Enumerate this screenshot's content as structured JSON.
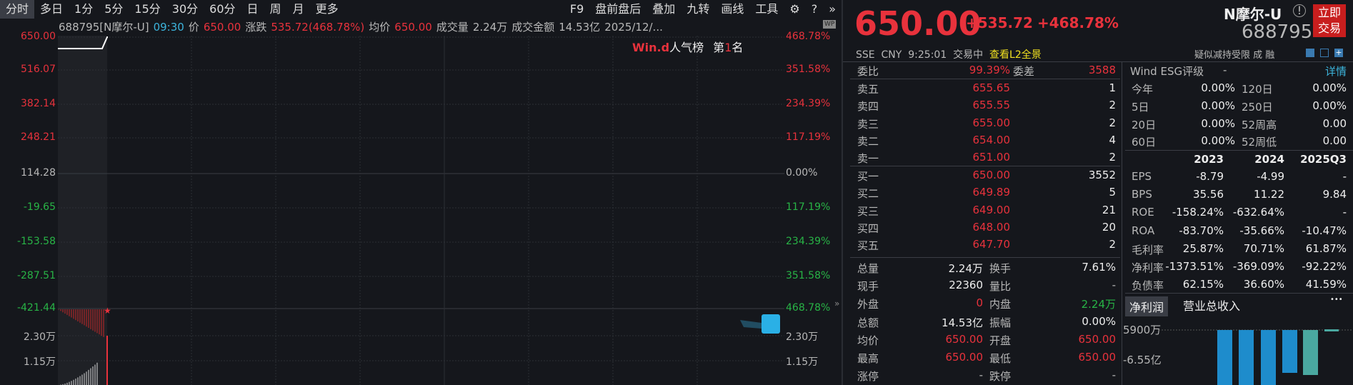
{
  "toolbar": {
    "tabs": [
      "分时",
      "多日",
      "1分",
      "5分",
      "15分",
      "30分",
      "60分",
      "日",
      "周",
      "月",
      "更多"
    ],
    "active": "分时",
    "right": [
      "F9",
      "盘前盘后",
      "叠加",
      "九转",
      "画线",
      "工具"
    ],
    "icons": [
      "gear-icon",
      "help-icon",
      "double-chevron-right-icon"
    ]
  },
  "info": {
    "code": "688795[N摩尔-U]",
    "time": "09:30",
    "price_label": "价",
    "price": "650.00",
    "change_label": "涨跌",
    "change": "535.72(468.78%)",
    "avg_label": "均价",
    "avg": "650.00",
    "vol_label": "成交量",
    "vol": "2.24万",
    "amt_label": "成交金额",
    "amt": "14.53亿",
    "date": "2025/12/...",
    "wp": "WP"
  },
  "rank": {
    "brand": "Win.d",
    "label": "人气榜",
    "prefix": "第",
    "num": "1",
    "suffix": "名"
  },
  "axis_left": [
    "650.00",
    "516.07",
    "382.14",
    "248.21",
    "114.28",
    "-19.65",
    "-153.58",
    "-287.51",
    "-421.44"
  ],
  "axis_right": [
    "468.78%",
    "351.58%",
    "234.39%",
    "117.19%",
    "0.00%",
    "117.19%",
    "234.39%",
    "351.58%",
    "468.78%"
  ],
  "vol_axis": [
    "2.30万",
    "1.15万"
  ],
  "quote": {
    "price": "650.00",
    "change": "+535.72",
    "pct": "+468.78%",
    "name": "N摩尔-U",
    "code": "688795",
    "trade_btn": "立即交易",
    "exchange": "SSE",
    "currency": "CNY",
    "time": "9:25:01",
    "status": "交易中",
    "l2": "查看L2全景",
    "tags": "疑似减持受限 成 融"
  },
  "book": {
    "wb_label": "委比",
    "wb": "99.39%",
    "wc_label": "委差",
    "wc": "3588",
    "asks": [
      [
        "卖五",
        "655.65",
        "1"
      ],
      [
        "卖四",
        "655.55",
        "2"
      ],
      [
        "卖三",
        "655.00",
        "2"
      ],
      [
        "卖二",
        "654.00",
        "4"
      ],
      [
        "卖一",
        "651.00",
        "2"
      ]
    ],
    "bids": [
      [
        "买一",
        "650.00",
        "3552"
      ],
      [
        "买二",
        "649.89",
        "5"
      ],
      [
        "买三",
        "649.00",
        "21"
      ],
      [
        "买四",
        "648.00",
        "20"
      ],
      [
        "买五",
        "647.70",
        "2"
      ]
    ]
  },
  "stats": [
    [
      "总量",
      "2.24万",
      "换手",
      "7.61%"
    ],
    [
      "现手",
      "22360",
      "量比",
      "-"
    ],
    [
      "外盘",
      "0",
      "内盘",
      "2.24万"
    ],
    [
      "总额",
      "14.53亿",
      "振幅",
      "0.00%"
    ],
    [
      "均价",
      "650.00",
      "开盘",
      "650.00"
    ],
    [
      "最高",
      "650.00",
      "最低",
      "650.00"
    ],
    [
      "涨停",
      "-",
      "跌停",
      "-"
    ]
  ],
  "esg": {
    "label": "Wind ESG评级",
    "value": "-",
    "detail": "详情"
  },
  "perf": [
    [
      "今年",
      "0.00%",
      "120日",
      "0.00%"
    ],
    [
      "5日",
      "0.00%",
      "250日",
      "0.00%"
    ],
    [
      "20日",
      "0.00%",
      "52周高",
      "0.00"
    ],
    [
      "60日",
      "0.00%",
      "52周低",
      "0.00"
    ]
  ],
  "fin": {
    "years": [
      "2023",
      "2024",
      "2025Q3"
    ],
    "rows": [
      [
        "EPS",
        "-8.79",
        "-4.99",
        "-"
      ],
      [
        "BPS",
        "35.56",
        "11.22",
        "9.84"
      ],
      [
        "ROE",
        "-158.24%",
        "-632.64%",
        "-"
      ],
      [
        "ROA",
        "-83.70%",
        "-35.66%",
        "-10.47%"
      ],
      [
        "毛利率",
        "25.87%",
        "70.71%",
        "61.87%"
      ],
      [
        "净利率",
        "-1373.51%",
        "-369.09%",
        "-92.22%"
      ],
      [
        "负债率",
        "62.15%",
        "36.60%",
        "41.59%"
      ]
    ]
  },
  "profit_tabs": [
    "净利润",
    "营业总收入"
  ],
  "profit_axis": [
    "5900万",
    "-6.55亿"
  ],
  "colors": {
    "up": "#e8323c",
    "down": "#28b446",
    "bar": "#1e8ccc",
    "bar_alt": "#4aa8a0"
  }
}
